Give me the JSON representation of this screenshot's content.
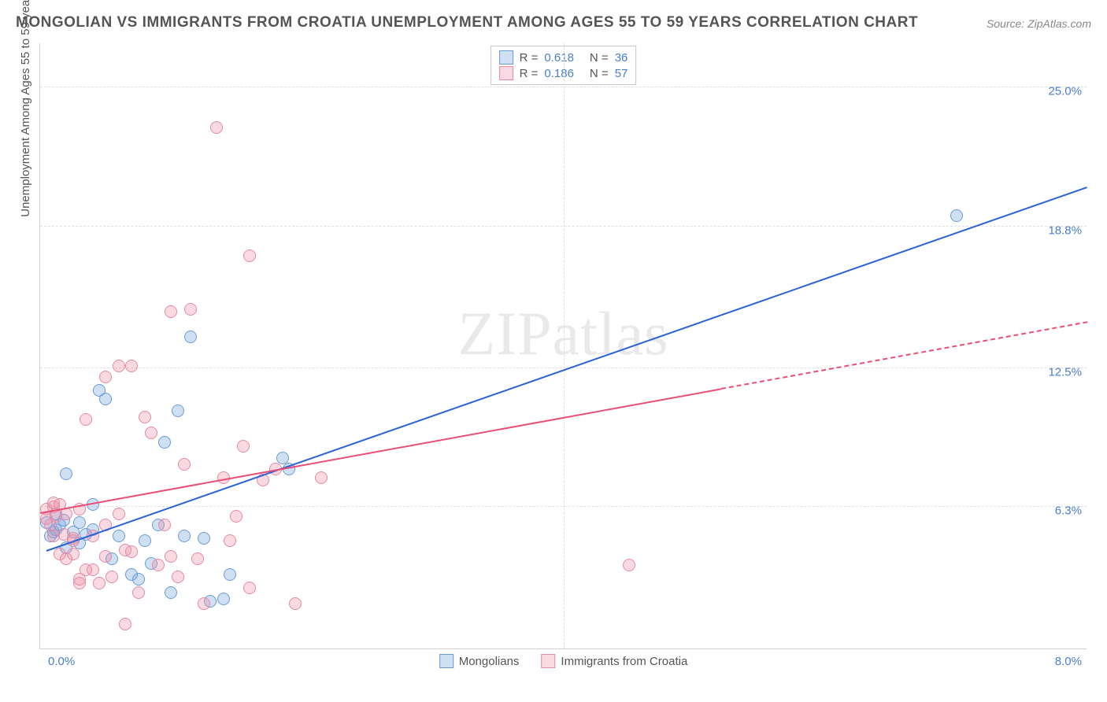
{
  "title": "MONGOLIAN VS IMMIGRANTS FROM CROATIA UNEMPLOYMENT AMONG AGES 55 TO 59 YEARS CORRELATION CHART",
  "source": "Source: ZipAtlas.com",
  "ylabel": "Unemployment Among Ages 55 to 59 years",
  "watermark_a": "ZIP",
  "watermark_b": "atlas",
  "chart": {
    "type": "scatter",
    "xlim": [
      0,
      8
    ],
    "ylim": [
      0,
      27
    ],
    "x_origin_label": "0.0%",
    "x_max_label": "8.0%",
    "y_ticks": [
      {
        "value": 6.3,
        "label": "6.3%"
      },
      {
        "value": 12.5,
        "label": "12.5%"
      },
      {
        "value": 18.8,
        "label": "18.8%"
      },
      {
        "value": 25.0,
        "label": "25.0%"
      }
    ],
    "x_gridlines": [
      4.0
    ],
    "background_color": "#ffffff",
    "grid_color": "#e0e0e0",
    "series": [
      {
        "id": "mongolians",
        "label": "Mongolians",
        "fill": "rgba(120,165,220,0.35)",
        "stroke": "#6b9bd6",
        "line_color": "#2b63d4",
        "r": "0.618",
        "n": "36",
        "regression": {
          "x1": 0.05,
          "y1": 4.3,
          "x2": 8.0,
          "y2": 20.5,
          "dashed": false
        },
        "points": [
          [
            0.05,
            5.6
          ],
          [
            0.08,
            5.0
          ],
          [
            0.1,
            5.2
          ],
          [
            0.12,
            6.0
          ],
          [
            0.12,
            5.3
          ],
          [
            0.15,
            5.5
          ],
          [
            0.18,
            5.7
          ],
          [
            0.2,
            7.8
          ],
          [
            0.2,
            4.5
          ],
          [
            0.25,
            5.2
          ],
          [
            0.3,
            5.6
          ],
          [
            0.3,
            4.7
          ],
          [
            0.35,
            5.1
          ],
          [
            0.4,
            5.3
          ],
          [
            0.4,
            6.4
          ],
          [
            0.45,
            11.5
          ],
          [
            0.5,
            11.1
          ],
          [
            0.55,
            4.0
          ],
          [
            0.6,
            5.0
          ],
          [
            0.7,
            3.3
          ],
          [
            0.75,
            3.1
          ],
          [
            0.8,
            4.8
          ],
          [
            0.85,
            3.8
          ],
          [
            0.9,
            5.5
          ],
          [
            0.95,
            9.2
          ],
          [
            1.0,
            2.5
          ],
          [
            1.05,
            10.6
          ],
          [
            1.1,
            5.0
          ],
          [
            1.15,
            13.9
          ],
          [
            1.25,
            4.9
          ],
          [
            1.3,
            2.1
          ],
          [
            1.4,
            2.2
          ],
          [
            1.45,
            3.3
          ],
          [
            1.85,
            8.5
          ],
          [
            1.9,
            8.0
          ],
          [
            7.0,
            19.3
          ]
        ]
      },
      {
        "id": "croatia",
        "label": "Immigrants from Croatia",
        "fill": "rgba(235,140,165,0.32)",
        "stroke": "#e58aa4",
        "line_color": "#e94e77",
        "r": "0.186",
        "n": "57",
        "regression": {
          "x1": 0.0,
          "y1": 6.0,
          "x2": 8.0,
          "y2": 14.5,
          "dashed_from_x": 5.2
        },
        "points": [
          [
            0.05,
            6.2
          ],
          [
            0.05,
            5.8
          ],
          [
            0.08,
            5.5
          ],
          [
            0.1,
            6.3
          ],
          [
            0.1,
            5.0
          ],
          [
            0.1,
            6.5
          ],
          [
            0.12,
            5.9
          ],
          [
            0.15,
            4.2
          ],
          [
            0.15,
            6.4
          ],
          [
            0.18,
            5.1
          ],
          [
            0.2,
            6.0
          ],
          [
            0.2,
            4.0
          ],
          [
            0.25,
            4.8
          ],
          [
            0.25,
            4.2
          ],
          [
            0.25,
            4.9
          ],
          [
            0.3,
            3.1
          ],
          [
            0.3,
            6.2
          ],
          [
            0.3,
            2.9
          ],
          [
            0.35,
            3.5
          ],
          [
            0.35,
            10.2
          ],
          [
            0.4,
            5.0
          ],
          [
            0.4,
            3.5
          ],
          [
            0.45,
            2.9
          ],
          [
            0.5,
            5.5
          ],
          [
            0.5,
            4.1
          ],
          [
            0.5,
            12.1
          ],
          [
            0.55,
            3.2
          ],
          [
            0.6,
            12.6
          ],
          [
            0.6,
            6.0
          ],
          [
            0.65,
            1.1
          ],
          [
            0.65,
            4.4
          ],
          [
            0.7,
            4.3
          ],
          [
            0.7,
            12.6
          ],
          [
            0.75,
            2.5
          ],
          [
            0.8,
            10.3
          ],
          [
            0.85,
            9.6
          ],
          [
            0.9,
            3.7
          ],
          [
            0.95,
            5.5
          ],
          [
            1.0,
            15.0
          ],
          [
            1.0,
            4.1
          ],
          [
            1.05,
            3.2
          ],
          [
            1.1,
            8.2
          ],
          [
            1.15,
            15.1
          ],
          [
            1.2,
            4.0
          ],
          [
            1.25,
            2.0
          ],
          [
            1.35,
            23.2
          ],
          [
            1.4,
            7.6
          ],
          [
            1.45,
            4.8
          ],
          [
            1.5,
            5.9
          ],
          [
            1.55,
            9.0
          ],
          [
            1.6,
            2.7
          ],
          [
            1.6,
            17.5
          ],
          [
            1.7,
            7.5
          ],
          [
            1.8,
            8.0
          ],
          [
            1.95,
            2.0
          ],
          [
            2.15,
            7.6
          ],
          [
            4.5,
            3.7
          ]
        ]
      }
    ]
  }
}
